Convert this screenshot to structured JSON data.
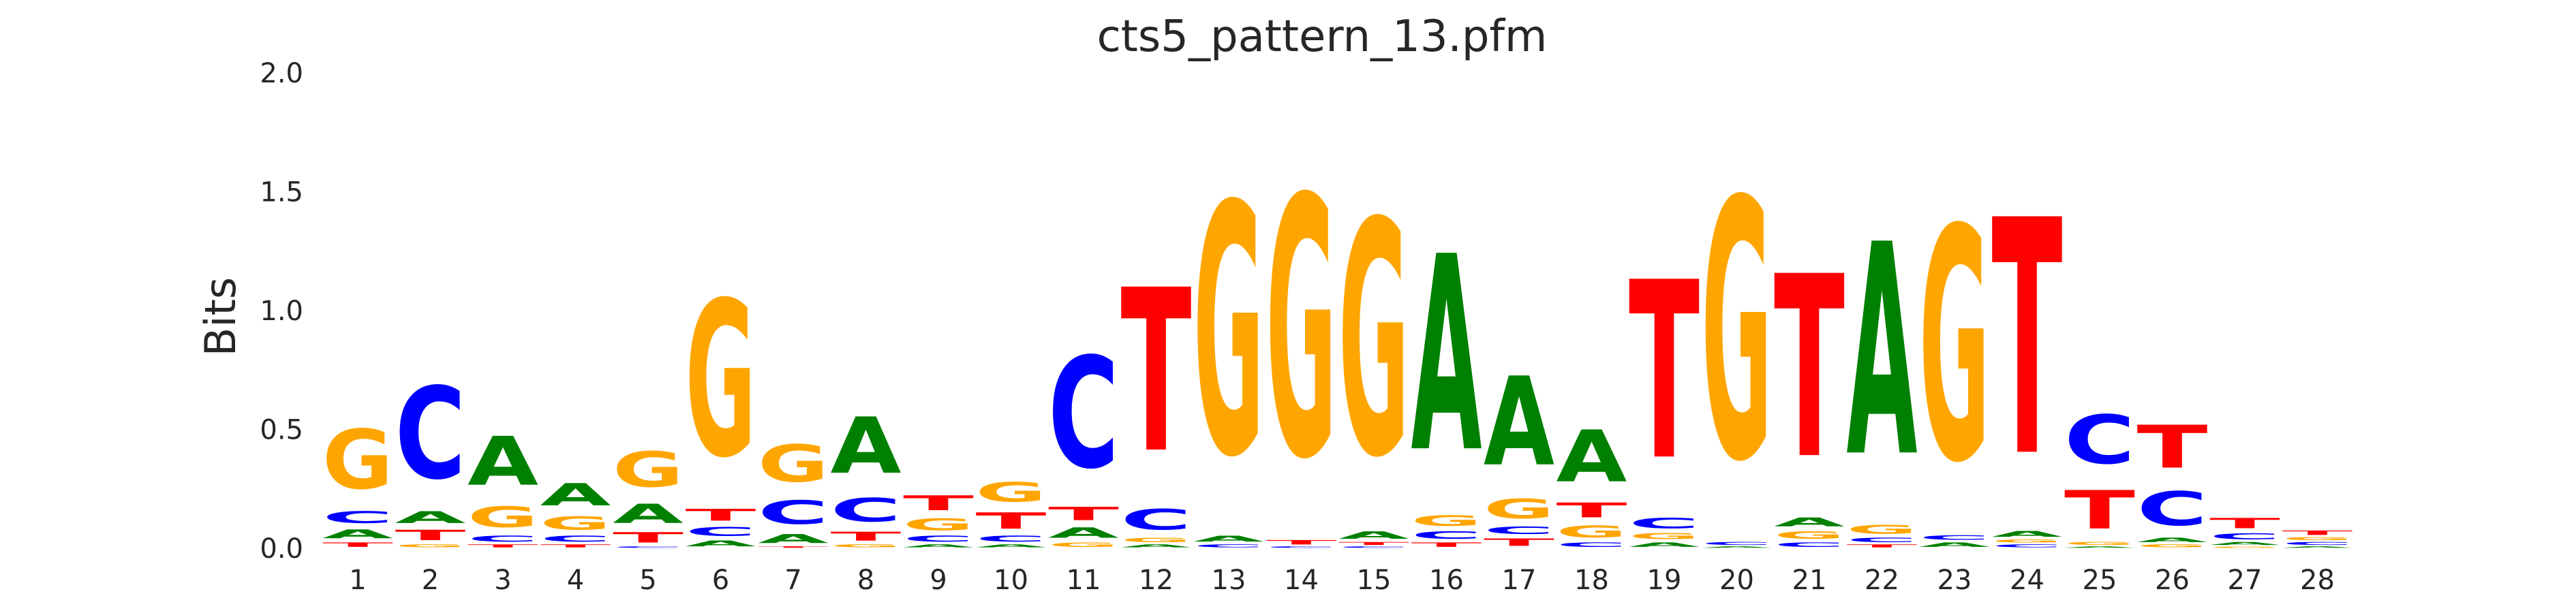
{
  "chart_data": {
    "type": "sequence-logo",
    "title": "cts5_pattern_13.pfm",
    "xlabel": "",
    "ylabel": "Bits",
    "ylim": [
      0,
      2.0
    ],
    "yticks": [
      "0.0",
      "0.5",
      "1.0",
      "1.5",
      "2.0"
    ],
    "grid": false,
    "colors": {
      "A": "#008000",
      "C": "#0000ff",
      "G": "#ffa500",
      "T": "#ff0000"
    },
    "positions": [
      {
        "pos": "1",
        "stack": [
          [
            "T",
            0.03
          ],
          [
            "A",
            0.06
          ],
          [
            "C",
            0.08
          ],
          [
            "G",
            0.4
          ]
        ]
      },
      {
        "pos": "2",
        "stack": [
          [
            "G",
            0.02
          ],
          [
            "T",
            0.07
          ],
          [
            "A",
            0.08
          ],
          [
            "C",
            0.62
          ]
        ]
      },
      {
        "pos": "3",
        "stack": [
          [
            "T",
            0.02
          ],
          [
            "C",
            0.04
          ],
          [
            "G",
            0.14
          ],
          [
            "A",
            0.33
          ]
        ]
      },
      {
        "pos": "4",
        "stack": [
          [
            "T",
            0.02
          ],
          [
            "C",
            0.04
          ],
          [
            "G",
            0.09
          ],
          [
            "A",
            0.15
          ]
        ]
      },
      {
        "pos": "5",
        "stack": [
          [
            "C",
            0.01
          ],
          [
            "T",
            0.07
          ],
          [
            "A",
            0.13
          ],
          [
            "G",
            0.24
          ]
        ]
      },
      {
        "pos": "6",
        "stack": [
          [
            "A",
            0.04
          ],
          [
            "C",
            0.06
          ],
          [
            "T",
            0.08
          ],
          [
            "G",
            1.05
          ]
        ]
      },
      {
        "pos": "7",
        "stack": [
          [
            "T",
            0.01
          ],
          [
            "A",
            0.06
          ],
          [
            "C",
            0.16
          ],
          [
            "G",
            0.25
          ]
        ]
      },
      {
        "pos": "8",
        "stack": [
          [
            "G",
            0.02
          ],
          [
            "T",
            0.06
          ],
          [
            "C",
            0.16
          ],
          [
            "A",
            0.38
          ]
        ]
      },
      {
        "pos": "9",
        "stack": [
          [
            "A",
            0.02
          ],
          [
            "C",
            0.04
          ],
          [
            "G",
            0.08
          ],
          [
            "T",
            0.1
          ]
        ]
      },
      {
        "pos": "10",
        "stack": [
          [
            "A",
            0.02
          ],
          [
            "C",
            0.04
          ],
          [
            "T",
            0.11
          ],
          [
            "G",
            0.13
          ]
        ]
      },
      {
        "pos": "11",
        "stack": [
          [
            "G",
            0.03
          ],
          [
            "A",
            0.07
          ],
          [
            "T",
            0.09
          ],
          [
            "C",
            0.75
          ]
        ]
      },
      {
        "pos": "12",
        "stack": [
          [
            "A",
            0.02
          ],
          [
            "G",
            0.03
          ],
          [
            "C",
            0.14
          ],
          [
            "T",
            1.1
          ]
        ]
      },
      {
        "pos": "13",
        "stack": [
          [
            "C",
            0.02
          ],
          [
            "A",
            0.04
          ],
          [
            "G",
            1.69
          ]
        ]
      },
      {
        "pos": "14",
        "stack": [
          [
            "C",
            0.01
          ],
          [
            "T",
            0.03
          ],
          [
            "G",
            1.75
          ]
        ]
      },
      {
        "pos": "15",
        "stack": [
          [
            "C",
            0.01
          ],
          [
            "T",
            0.02
          ],
          [
            "A",
            0.05
          ],
          [
            "G",
            1.58
          ]
        ]
      },
      {
        "pos": "16",
        "stack": [
          [
            "T",
            0.03
          ],
          [
            "C",
            0.05
          ],
          [
            "G",
            0.07
          ],
          [
            "A",
            1.32
          ]
        ]
      },
      {
        "pos": "17",
        "stack": [
          [
            "T",
            0.05
          ],
          [
            "C",
            0.05
          ],
          [
            "G",
            0.13
          ],
          [
            "A",
            0.6
          ]
        ]
      },
      {
        "pos": "18",
        "stack": [
          [
            "C",
            0.03
          ],
          [
            "G",
            0.08
          ],
          [
            "T",
            0.1
          ],
          [
            "A",
            0.35
          ]
        ]
      },
      {
        "pos": "19",
        "stack": [
          [
            "A",
            0.03
          ],
          [
            "G",
            0.04
          ],
          [
            "C",
            0.07
          ],
          [
            "T",
            1.2
          ]
        ]
      },
      {
        "pos": "20",
        "stack": [
          [
            "A",
            0.01
          ],
          [
            "C",
            0.02
          ],
          [
            "G",
            1.75
          ]
        ]
      },
      {
        "pos": "21",
        "stack": [
          [
            "C",
            0.03
          ],
          [
            "G",
            0.05
          ],
          [
            "A",
            0.06
          ],
          [
            "T",
            1.23
          ]
        ]
      },
      {
        "pos": "22",
        "stack": [
          [
            "T",
            0.02
          ],
          [
            "C",
            0.03
          ],
          [
            "G",
            0.06
          ],
          [
            "A",
            1.43
          ]
        ]
      },
      {
        "pos": "23",
        "stack": [
          [
            "A",
            0.03
          ],
          [
            "C",
            0.03
          ],
          [
            "G",
            1.57
          ]
        ]
      },
      {
        "pos": "24",
        "stack": [
          [
            "C",
            0.02
          ],
          [
            "G",
            0.02
          ],
          [
            "A",
            0.04
          ],
          [
            "T",
            1.59
          ]
        ]
      },
      {
        "pos": "25",
        "stack": [
          [
            "A",
            0.01
          ],
          [
            "G",
            0.02
          ],
          [
            "T",
            0.26
          ],
          [
            "C",
            0.33
          ]
        ]
      },
      {
        "pos": "26",
        "stack": [
          [
            "G",
            0.02
          ],
          [
            "A",
            0.03
          ],
          [
            "C",
            0.23
          ],
          [
            "T",
            0.29
          ]
        ]
      },
      {
        "pos": "27",
        "stack": [
          [
            "G",
            0.01
          ],
          [
            "A",
            0.02
          ],
          [
            "C",
            0.04
          ],
          [
            "T",
            0.07
          ]
        ]
      },
      {
        "pos": "28",
        "stack": [
          [
            "A",
            0.01
          ],
          [
            "C",
            0.02
          ],
          [
            "G",
            0.02
          ],
          [
            "T",
            0.03
          ]
        ]
      }
    ]
  }
}
